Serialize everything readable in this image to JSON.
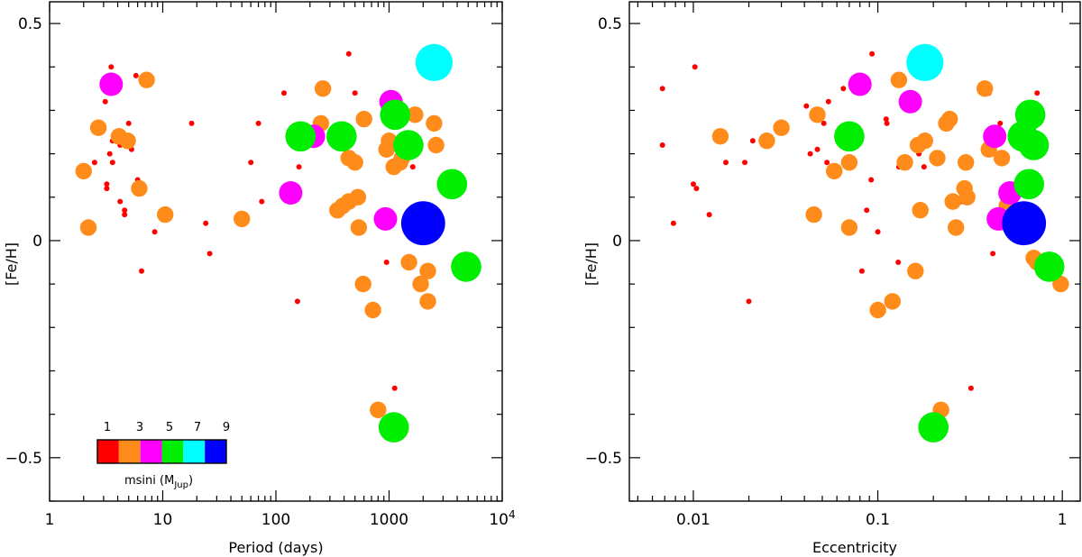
{
  "color_scale": {
    "label": "msini (M",
    "label_sub": "Jup",
    "label_close": ")",
    "tick_labels": [
      "1",
      "3",
      "5",
      "7",
      "9"
    ],
    "bands": [
      {
        "from": 0,
        "to": 2,
        "color": "#ff0000"
      },
      {
        "from": 2,
        "to": 4,
        "color": "#ff8c1a"
      },
      {
        "from": 4,
        "to": 6,
        "color": "#ff00ff"
      },
      {
        "from": 6,
        "to": 8,
        "color": "#00ee00"
      },
      {
        "from": 8,
        "to": 10,
        "color": "#00ffff"
      },
      {
        "from": 10,
        "to": 12,
        "color": "#0000ff"
      }
    ]
  },
  "chart_data": [
    {
      "type": "scatter",
      "xscale": "log",
      "xlabel": "Period (days)",
      "ylabel": "[Fe/H]",
      "xlim": [
        1,
        10000
      ],
      "ylim": [
        -0.6,
        0.55
      ],
      "xticks": [
        {
          "v": 1,
          "label": "1"
        },
        {
          "v": 10,
          "label": "10"
        },
        {
          "v": 100,
          "label": "100"
        },
        {
          "v": 1000,
          "label": "1000"
        },
        {
          "v": 10000,
          "label": "10",
          "sup": "4"
        }
      ],
      "yticks": [
        {
          "v": -0.5,
          "label": "−0.5"
        },
        {
          "v": 0,
          "label": "0"
        },
        {
          "v": 0.5,
          "label": "0.5"
        }
      ],
      "points": [
        {
          "x": 3.5,
          "y": 0.4,
          "m": 0.5
        },
        {
          "x": 3.3,
          "y": 0.35,
          "m": 0.5
        },
        {
          "x": 3.1,
          "y": 0.32,
          "m": 0.5
        },
        {
          "x": 3.6,
          "y": 0.23,
          "m": 0.5
        },
        {
          "x": 4.2,
          "y": 0.22,
          "m": 0.5
        },
        {
          "x": 3.4,
          "y": 0.2,
          "m": 0.5
        },
        {
          "x": 3.6,
          "y": 0.18,
          "m": 0.5
        },
        {
          "x": 2.5,
          "y": 0.18,
          "m": 0.5
        },
        {
          "x": 3.2,
          "y": 0.13,
          "m": 0.5
        },
        {
          "x": 3.2,
          "y": 0.12,
          "m": 0.5
        },
        {
          "x": 4.2,
          "y": 0.09,
          "m": 0.5
        },
        {
          "x": 4.6,
          "y": 0.07,
          "m": 0.5
        },
        {
          "x": 4.6,
          "y": 0.06,
          "m": 0.5
        },
        {
          "x": 5.3,
          "y": 0.21,
          "m": 0.5
        },
        {
          "x": 5.0,
          "y": 0.27,
          "m": 0.5
        },
        {
          "x": 3.9,
          "y": 0.35,
          "m": 0.5
        },
        {
          "x": 5.8,
          "y": 0.38,
          "m": 0.5
        },
        {
          "x": 6.0,
          "y": 0.14,
          "m": 0.5
        },
        {
          "x": 6.5,
          "y": -0.07,
          "m": 0.5
        },
        {
          "x": 8.5,
          "y": 0.02,
          "m": 0.5
        },
        {
          "x": 10.5,
          "y": 0.05,
          "m": 0.5
        },
        {
          "x": 18,
          "y": 0.27,
          "m": 0.5
        },
        {
          "x": 24,
          "y": 0.04,
          "m": 0.5
        },
        {
          "x": 26,
          "y": -0.03,
          "m": 0.5
        },
        {
          "x": 60,
          "y": 0.18,
          "m": 0.5
        },
        {
          "x": 70,
          "y": 0.27,
          "m": 0.5
        },
        {
          "x": 75,
          "y": 0.09,
          "m": 0.5
        },
        {
          "x": 118,
          "y": 0.34,
          "m": 0.5
        },
        {
          "x": 155,
          "y": -0.14,
          "m": 0.5
        },
        {
          "x": 160,
          "y": 0.17,
          "m": 0.5
        },
        {
          "x": 170,
          "y": 0.25,
          "m": 0.5
        },
        {
          "x": 440,
          "y": 0.43,
          "m": 0.5
        },
        {
          "x": 500,
          "y": 0.34,
          "m": 0.5
        },
        {
          "x": 950,
          "y": -0.05,
          "m": 0.5
        },
        {
          "x": 960,
          "y": 0.03,
          "m": 0.5
        },
        {
          "x": 1000,
          "y": 0.24,
          "m": 0.5
        },
        {
          "x": 1100,
          "y": 0.28,
          "m": 0.5
        },
        {
          "x": 1120,
          "y": -0.34,
          "m": 0.5
        },
        {
          "x": 1620,
          "y": 0.17,
          "m": 0.5
        },
        {
          "x": 2.0,
          "y": 0.16,
          "m": 3
        },
        {
          "x": 2.2,
          "y": 0.03,
          "m": 3
        },
        {
          "x": 2.7,
          "y": 0.26,
          "m": 3
        },
        {
          "x": 4.1,
          "y": 0.24,
          "m": 3
        },
        {
          "x": 4.9,
          "y": 0.23,
          "m": 3
        },
        {
          "x": 6.2,
          "y": 0.12,
          "m": 3
        },
        {
          "x": 7.2,
          "y": 0.37,
          "m": 3
        },
        {
          "x": 10.5,
          "y": 0.06,
          "m": 3
        },
        {
          "x": 50,
          "y": 0.05,
          "m": 3
        },
        {
          "x": 250,
          "y": 0.27,
          "m": 3
        },
        {
          "x": 260,
          "y": 0.35,
          "m": 3
        },
        {
          "x": 350,
          "y": 0.07,
          "m": 3
        },
        {
          "x": 390,
          "y": 0.08,
          "m": 3
        },
        {
          "x": 440,
          "y": 0.09,
          "m": 3
        },
        {
          "x": 440,
          "y": 0.19,
          "m": 3
        },
        {
          "x": 500,
          "y": 0.18,
          "m": 3
        },
        {
          "x": 530,
          "y": 0.1,
          "m": 3
        },
        {
          "x": 540,
          "y": 0.03,
          "m": 3
        },
        {
          "x": 590,
          "y": -0.1,
          "m": 3
        },
        {
          "x": 600,
          "y": 0.28,
          "m": 3
        },
        {
          "x": 720,
          "y": -0.16,
          "m": 3
        },
        {
          "x": 800,
          "y": -0.39,
          "m": 3
        },
        {
          "x": 950,
          "y": 0.21,
          "m": 3
        },
        {
          "x": 1000,
          "y": 0.23,
          "m": 3
        },
        {
          "x": 1100,
          "y": 0.17,
          "m": 3
        },
        {
          "x": 1250,
          "y": 0.18,
          "m": 3
        },
        {
          "x": 1300,
          "y": 0.19,
          "m": 3
        },
        {
          "x": 1500,
          "y": -0.05,
          "m": 3
        },
        {
          "x": 1700,
          "y": 0.29,
          "m": 3
        },
        {
          "x": 1900,
          "y": -0.1,
          "m": 3
        },
        {
          "x": 2200,
          "y": -0.07,
          "m": 3
        },
        {
          "x": 2200,
          "y": -0.14,
          "m": 3
        },
        {
          "x": 2500,
          "y": 0.27,
          "m": 3
        },
        {
          "x": 2600,
          "y": 0.22,
          "m": 3
        },
        {
          "x": 3.5,
          "y": 0.36,
          "m": 5
        },
        {
          "x": 135,
          "y": 0.11,
          "m": 5
        },
        {
          "x": 215,
          "y": 0.24,
          "m": 5
        },
        {
          "x": 930,
          "y": 0.05,
          "m": 5
        },
        {
          "x": 1040,
          "y": 0.32,
          "m": 5
        },
        {
          "x": 165,
          "y": 0.24,
          "m": 7
        },
        {
          "x": 380,
          "y": 0.24,
          "m": 7
        },
        {
          "x": 1100,
          "y": -0.43,
          "m": 7
        },
        {
          "x": 1130,
          "y": 0.29,
          "m": 7
        },
        {
          "x": 1480,
          "y": 0.22,
          "m": 7
        },
        {
          "x": 3600,
          "y": 0.13,
          "m": 7
        },
        {
          "x": 4800,
          "y": -0.06,
          "m": 7
        },
        {
          "x": 2500,
          "y": 0.41,
          "m": 9
        },
        {
          "x": 2000,
          "y": 0.04,
          "m": 11
        }
      ]
    },
    {
      "type": "scatter",
      "xscale": "log",
      "xlabel": "Eccentricity",
      "ylabel": "[Fe/H]",
      "xlim": [
        0.0045,
        1.25
      ],
      "ylim": [
        -0.6,
        0.55
      ],
      "xticks": [
        {
          "v": 0.01,
          "label": "0.01"
        },
        {
          "v": 0.1,
          "label": "0.1"
        },
        {
          "v": 1,
          "label": "1"
        }
      ],
      "yticks": [
        {
          "v": -0.5,
          "label": "−0.5"
        },
        {
          "v": 0,
          "label": "0"
        },
        {
          "v": 0.5,
          "label": "0.5"
        }
      ],
      "points": [
        {
          "x": 0.0068,
          "y": 0.35,
          "m": 0.5
        },
        {
          "x": 0.0068,
          "y": 0.22,
          "m": 0.5
        },
        {
          "x": 0.0078,
          "y": 0.04,
          "m": 0.5
        },
        {
          "x": 0.0102,
          "y": 0.4,
          "m": 0.5
        },
        {
          "x": 0.01,
          "y": 0.13,
          "m": 0.5
        },
        {
          "x": 0.0104,
          "y": 0.12,
          "m": 0.5
        },
        {
          "x": 0.0122,
          "y": 0.06,
          "m": 0.5
        },
        {
          "x": 0.015,
          "y": 0.18,
          "m": 0.5
        },
        {
          "x": 0.019,
          "y": 0.18,
          "m": 0.5
        },
        {
          "x": 0.02,
          "y": -0.14,
          "m": 0.5
        },
        {
          "x": 0.021,
          "y": 0.23,
          "m": 0.5
        },
        {
          "x": 0.041,
          "y": 0.31,
          "m": 0.5
        },
        {
          "x": 0.043,
          "y": 0.2,
          "m": 0.5
        },
        {
          "x": 0.047,
          "y": 0.21,
          "m": 0.5
        },
        {
          "x": 0.051,
          "y": 0.27,
          "m": 0.5
        },
        {
          "x": 0.053,
          "y": 0.18,
          "m": 0.5
        },
        {
          "x": 0.054,
          "y": 0.32,
          "m": 0.5
        },
        {
          "x": 0.065,
          "y": 0.35,
          "m": 0.5
        },
        {
          "x": 0.082,
          "y": -0.07,
          "m": 0.5
        },
        {
          "x": 0.087,
          "y": 0.07,
          "m": 0.5
        },
        {
          "x": 0.092,
          "y": 0.14,
          "m": 0.5
        },
        {
          "x": 0.093,
          "y": 0.43,
          "m": 0.5
        },
        {
          "x": 0.1,
          "y": 0.02,
          "m": 0.5
        },
        {
          "x": 0.111,
          "y": 0.28,
          "m": 0.5
        },
        {
          "x": 0.112,
          "y": 0.27,
          "m": 0.5
        },
        {
          "x": 0.129,
          "y": -0.05,
          "m": 0.5
        },
        {
          "x": 0.13,
          "y": 0.17,
          "m": 0.5
        },
        {
          "x": 0.167,
          "y": 0.2,
          "m": 0.5
        },
        {
          "x": 0.178,
          "y": 0.17,
          "m": 0.5
        },
        {
          "x": 0.285,
          "y": 0.09,
          "m": 0.5
        },
        {
          "x": 0.32,
          "y": -0.34,
          "m": 0.5
        },
        {
          "x": 0.4,
          "y": 0.34,
          "m": 0.5
        },
        {
          "x": 0.42,
          "y": -0.03,
          "m": 0.5
        },
        {
          "x": 0.44,
          "y": 0.25,
          "m": 0.5
        },
        {
          "x": 0.46,
          "y": 0.27,
          "m": 0.5
        },
        {
          "x": 0.47,
          "y": 0.03,
          "m": 0.5
        },
        {
          "x": 0.54,
          "y": 0.23,
          "m": 0.5
        },
        {
          "x": 0.54,
          "y": 0.05,
          "m": 0.5
        },
        {
          "x": 0.73,
          "y": 0.34,
          "m": 0.5
        },
        {
          "x": 0.014,
          "y": 0.24,
          "m": 3
        },
        {
          "x": 0.025,
          "y": 0.23,
          "m": 3
        },
        {
          "x": 0.03,
          "y": 0.26,
          "m": 3
        },
        {
          "x": 0.045,
          "y": 0.06,
          "m": 3
        },
        {
          "x": 0.047,
          "y": 0.29,
          "m": 3
        },
        {
          "x": 0.07,
          "y": 0.18,
          "m": 3
        },
        {
          "x": 0.07,
          "y": 0.03,
          "m": 3
        },
        {
          "x": 0.058,
          "y": 0.16,
          "m": 3
        },
        {
          "x": 0.1,
          "y": -0.16,
          "m": 3
        },
        {
          "x": 0.12,
          "y": -0.14,
          "m": 3
        },
        {
          "x": 0.13,
          "y": 0.37,
          "m": 3
        },
        {
          "x": 0.14,
          "y": 0.18,
          "m": 3
        },
        {
          "x": 0.16,
          "y": -0.07,
          "m": 3
        },
        {
          "x": 0.165,
          "y": 0.22,
          "m": 3
        },
        {
          "x": 0.17,
          "y": 0.07,
          "m": 3
        },
        {
          "x": 0.18,
          "y": 0.23,
          "m": 3
        },
        {
          "x": 0.21,
          "y": 0.19,
          "m": 3
        },
        {
          "x": 0.22,
          "y": -0.39,
          "m": 3
        },
        {
          "x": 0.235,
          "y": 0.27,
          "m": 3
        },
        {
          "x": 0.245,
          "y": 0.28,
          "m": 3
        },
        {
          "x": 0.255,
          "y": 0.09,
          "m": 3
        },
        {
          "x": 0.265,
          "y": 0.03,
          "m": 3
        },
        {
          "x": 0.295,
          "y": 0.12,
          "m": 3
        },
        {
          "x": 0.3,
          "y": 0.18,
          "m": 3
        },
        {
          "x": 0.305,
          "y": 0.1,
          "m": 3
        },
        {
          "x": 0.38,
          "y": 0.35,
          "m": 3
        },
        {
          "x": 0.4,
          "y": 0.21,
          "m": 3
        },
        {
          "x": 0.47,
          "y": 0.19,
          "m": 3
        },
        {
          "x": 0.5,
          "y": 0.08,
          "m": 3
        },
        {
          "x": 0.63,
          "y": 0.05,
          "m": 3
        },
        {
          "x": 0.7,
          "y": -0.04,
          "m": 3
        },
        {
          "x": 0.73,
          "y": -0.05,
          "m": 3
        },
        {
          "x": 0.98,
          "y": -0.1,
          "m": 3
        },
        {
          "x": 0.08,
          "y": 0.36,
          "m": 5
        },
        {
          "x": 0.15,
          "y": 0.32,
          "m": 5
        },
        {
          "x": 0.43,
          "y": 0.24,
          "m": 5
        },
        {
          "x": 0.45,
          "y": 0.05,
          "m": 5
        },
        {
          "x": 0.52,
          "y": 0.11,
          "m": 5
        },
        {
          "x": 0.07,
          "y": 0.24,
          "m": 7
        },
        {
          "x": 0.2,
          "y": -0.43,
          "m": 7
        },
        {
          "x": 0.61,
          "y": 0.24,
          "m": 7
        },
        {
          "x": 0.66,
          "y": 0.13,
          "m": 7
        },
        {
          "x": 0.67,
          "y": 0.29,
          "m": 7
        },
        {
          "x": 0.7,
          "y": 0.22,
          "m": 7
        },
        {
          "x": 0.85,
          "y": -0.06,
          "m": 7
        },
        {
          "x": 0.18,
          "y": 0.41,
          "m": 9
        },
        {
          "x": 0.62,
          "y": 0.04,
          "m": 11
        }
      ]
    }
  ]
}
